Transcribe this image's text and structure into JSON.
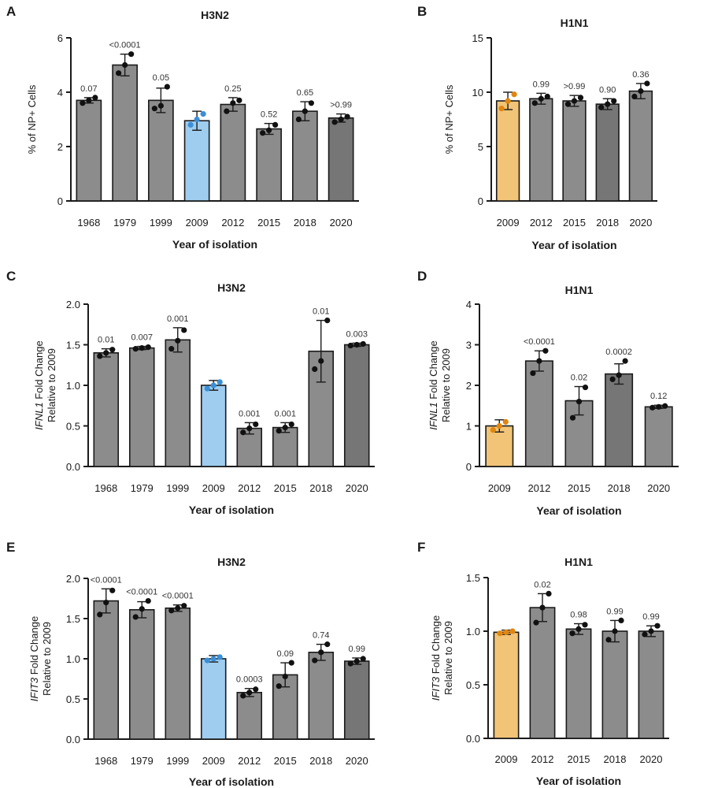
{
  "figure": {
    "colors": {
      "bar_default": "#8c8c8c",
      "bar_dark": "#767676",
      "bar_blue": "#9fcdef",
      "bar_orange": "#f1c477",
      "dot_default": "#111111",
      "dot_blue": "#3a8fd8",
      "dot_orange": "#e1860f",
      "outline": "#1a1a1a"
    }
  },
  "chart_data": [
    {
      "panel": "A",
      "type": "bar",
      "title": "H3N2",
      "xlabel": "Year of isolation",
      "ylabel": "% of NP+ Cells",
      "ylim": [
        0,
        6
      ],
      "yticks": [
        "0",
        "2",
        "4",
        "6"
      ],
      "categories": [
        "1968",
        "1979",
        "1999",
        "2009",
        "2012",
        "2015",
        "2018",
        "2020"
      ],
      "values": [
        3.7,
        5.0,
        3.7,
        2.95,
        3.55,
        2.65,
        3.3,
        3.05
      ],
      "errors": [
        0.1,
        0.4,
        0.45,
        0.35,
        0.25,
        0.2,
        0.35,
        0.15
      ],
      "points": [
        [
          3.6,
          3.7,
          3.8
        ],
        [
          4.7,
          5.0,
          5.4
        ],
        [
          3.4,
          3.5,
          4.2
        ],
        [
          2.8,
          3.0,
          3.2
        ],
        [
          3.3,
          3.6,
          3.7
        ],
        [
          2.5,
          2.6,
          2.8
        ],
        [
          3.0,
          3.3,
          3.6
        ],
        [
          2.9,
          3.0,
          3.1
        ]
      ],
      "pvalues": [
        "0.07",
        "<0.0001",
        "0.05",
        "",
        "0.25",
        "0.52",
        "0.65",
        ">0.99"
      ],
      "colors": [
        "default",
        "default",
        "default",
        "blue",
        "default",
        "default",
        "default",
        "dark"
      ]
    },
    {
      "panel": "B",
      "type": "bar",
      "title": "H1N1",
      "xlabel": "Year of isolation",
      "ylabel": "% of NP+ Cells",
      "ylim": [
        0,
        15
      ],
      "yticks": [
        "0",
        "5",
        "10",
        "15"
      ],
      "categories": [
        "2009",
        "2012",
        "2015",
        "2018",
        "2020"
      ],
      "values": [
        9.2,
        9.4,
        9.2,
        8.9,
        10.1
      ],
      "errors": [
        0.8,
        0.5,
        0.5,
        0.5,
        0.7
      ],
      "points": [
        [
          8.5,
          9.2,
          9.8
        ],
        [
          9.0,
          9.4,
          9.6
        ],
        [
          8.9,
          9.2,
          9.5
        ],
        [
          8.6,
          8.9,
          9.2
        ],
        [
          9.6,
          10.1,
          10.8
        ]
      ],
      "pvalues": [
        "",
        "0.99",
        ">0.99",
        "0.90",
        "0.36"
      ],
      "colors": [
        "orange",
        "default",
        "default",
        "dark",
        "default"
      ]
    },
    {
      "panel": "C",
      "type": "bar",
      "title": "H3N2",
      "xlabel": "Year of isolation",
      "ylabel": [
        "IFNL1 Fold Change",
        "Relative to 2009"
      ],
      "ylim": [
        0,
        2
      ],
      "yticks": [
        "0.0",
        "0.5",
        "1.0",
        "1.5",
        "2.0"
      ],
      "categories": [
        "1968",
        "1979",
        "1999",
        "2009",
        "2012",
        "2015",
        "2018",
        "2020"
      ],
      "values": [
        1.4,
        1.46,
        1.56,
        1.0,
        0.47,
        0.48,
        1.42,
        1.5
      ],
      "errors": [
        0.05,
        0.02,
        0.15,
        0.06,
        0.07,
        0.06,
        0.38,
        0.02
      ],
      "points": [
        [
          1.36,
          1.4,
          1.44
        ],
        [
          1.45,
          1.46,
          1.47
        ],
        [
          1.45,
          1.55,
          1.68
        ],
        [
          0.96,
          1.0,
          1.04
        ],
        [
          0.42,
          0.47,
          0.52
        ],
        [
          0.44,
          0.48,
          0.52
        ],
        [
          1.2,
          1.3,
          1.8
        ],
        [
          1.49,
          1.5,
          1.51
        ]
      ],
      "pvalues": [
        "0.01",
        "0.007",
        "0.001",
        "",
        "0.001",
        "0.001",
        "0.01",
        "0.003"
      ],
      "colors": [
        "default",
        "default",
        "default",
        "blue",
        "default",
        "default",
        "default",
        "dark"
      ]
    },
    {
      "panel": "D",
      "type": "bar",
      "title": "H1N1",
      "xlabel": "Year of isolation",
      "ylabel": [
        "IFNL1 Fold Change",
        "Relative to 2009"
      ],
      "ylim": [
        0,
        4
      ],
      "yticks": [
        "0",
        "1",
        "2",
        "3",
        "4"
      ],
      "categories": [
        "2009",
        "2012",
        "2015",
        "2018",
        "2020"
      ],
      "values": [
        1.0,
        2.6,
        1.62,
        2.28,
        1.47
      ],
      "errors": [
        0.15,
        0.25,
        0.35,
        0.25,
        0.04
      ],
      "points": [
        [
          0.9,
          1.0,
          1.1
        ],
        [
          2.3,
          2.6,
          2.85
        ],
        [
          1.2,
          1.6,
          1.95
        ],
        [
          2.15,
          2.25,
          2.6
        ],
        [
          1.45,
          1.47,
          1.49
        ]
      ],
      "pvalues": [
        "",
        "<0.0001",
        "0.02",
        "0.0002",
        "0.12"
      ],
      "colors": [
        "orange",
        "default",
        "default",
        "dark",
        "default"
      ]
    },
    {
      "panel": "E",
      "type": "bar",
      "title": "H3N2",
      "xlabel": "Year of isolation",
      "ylabel": [
        "IFIT3 Fold Change",
        "Relative to 2009"
      ],
      "ylim": [
        0,
        2
      ],
      "yticks": [
        "0.0",
        "0.5",
        "1.0",
        "1.5",
        "2.0"
      ],
      "categories": [
        "1968",
        "1979",
        "1999",
        "2009",
        "2012",
        "2015",
        "2018",
        "2020"
      ],
      "values": [
        1.72,
        1.61,
        1.63,
        1.0,
        0.58,
        0.8,
        1.08,
        0.97
      ],
      "errors": [
        0.15,
        0.1,
        0.04,
        0.04,
        0.05,
        0.15,
        0.1,
        0.04
      ],
      "points": [
        [
          1.55,
          1.7,
          1.85
        ],
        [
          1.52,
          1.62,
          1.72
        ],
        [
          1.6,
          1.63,
          1.66
        ],
        [
          0.98,
          1.0,
          1.02
        ],
        [
          0.54,
          0.58,
          0.62
        ],
        [
          0.66,
          0.78,
          0.95
        ],
        [
          0.98,
          1.08,
          1.18
        ],
        [
          0.94,
          0.97,
          1.0
        ]
      ],
      "pvalues": [
        "<0.0001",
        "<0.0001",
        "<0.0001",
        "",
        "0.0003",
        "0.09",
        "0.74",
        "0.99"
      ],
      "colors": [
        "default",
        "default",
        "default",
        "blue",
        "default",
        "default",
        "default",
        "dark"
      ]
    },
    {
      "panel": "F",
      "type": "bar",
      "title": "H1N1",
      "xlabel": "Year of isolation",
      "ylabel": [
        "IFIT3 Fold Change",
        "Relative to 2009"
      ],
      "ylim": [
        0,
        1.5
      ],
      "yticks": [
        "0.0",
        "0.5",
        "1.0",
        "1.5"
      ],
      "categories": [
        "2009",
        "2012",
        "2015",
        "2018",
        "2020"
      ],
      "values": [
        0.99,
        1.22,
        1.02,
        1.0,
        1.0
      ],
      "errors": [
        0.02,
        0.13,
        0.05,
        0.1,
        0.05
      ],
      "points": [
        [
          0.98,
          0.99,
          1.0
        ],
        [
          1.08,
          1.22,
          1.35
        ],
        [
          0.98,
          1.02,
          1.06
        ],
        [
          0.92,
          1.0,
          1.1
        ],
        [
          0.97,
          1.0,
          1.05
        ]
      ],
      "pvalues": [
        "",
        "0.02",
        "0.98",
        "0.99",
        "0.99"
      ],
      "colors": [
        "orange",
        "default",
        "default",
        "default",
        "default"
      ]
    }
  ]
}
